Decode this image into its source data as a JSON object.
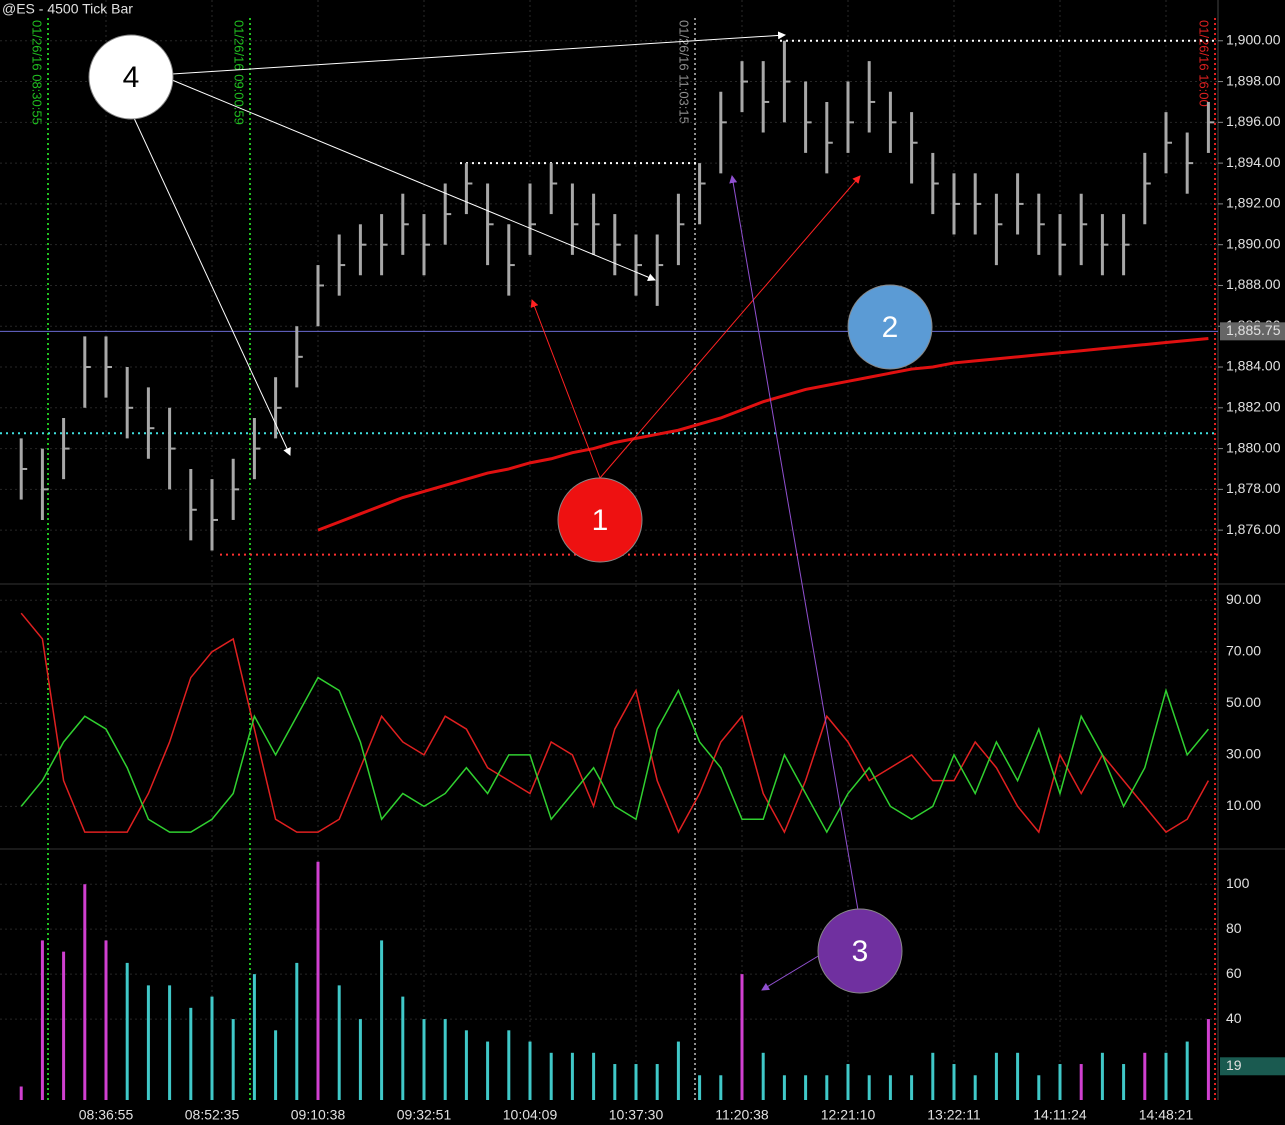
{
  "chart_data": [
    {
      "type": "ohlc",
      "title": "@ES - 4500 Tick Bar",
      "categories": [
        null,
        null,
        null,
        null,
        "08:36:55",
        null,
        null,
        null,
        null,
        "08:52:35",
        null,
        null,
        null,
        null,
        "09:10:38",
        null,
        null,
        null,
        null,
        "09:32:51",
        null,
        null,
        null,
        null,
        "10:04:09",
        null,
        null,
        null,
        null,
        "10:37:30",
        null,
        null,
        null,
        null,
        "11:20:38",
        null,
        null,
        null,
        null,
        "12:21:10",
        null,
        null,
        null,
        null,
        "13:22:11",
        null,
        null,
        null,
        null,
        "14:11:24",
        null,
        null,
        null,
        null,
        "14:48:21",
        null,
        null
      ],
      "high": [
        1880.5,
        1880,
        1881.5,
        1885.5,
        1885.5,
        1884,
        1883,
        1882,
        1879,
        1878.5,
        1879.5,
        1881.5,
        1883.5,
        1886,
        1889,
        1890.5,
        1891,
        1891.5,
        1892.5,
        1891.5,
        1893,
        1894,
        1893,
        1891,
        1893,
        1894,
        1893,
        1892.5,
        1891.5,
        1890.5,
        1890.5,
        1892.5,
        1894,
        1897.5,
        1899,
        1899,
        1900,
        1898,
        1897,
        1898,
        1899,
        1897.5,
        1896.5,
        1894.5,
        1893.5,
        1893.5,
        1892.5,
        1893.5,
        1892.5,
        1891.5,
        1892.5,
        1891.5,
        1891.5,
        1894.5,
        1896.5,
        1895.5,
        1897
      ],
      "low": [
        1877.5,
        1876.5,
        1878.5,
        1882,
        1882.5,
        1880.5,
        1879.5,
        1878,
        1875.5,
        1875,
        1876.5,
        1878.5,
        1880.5,
        1883,
        1886,
        1887.5,
        1888.5,
        1888.5,
        1889.5,
        1888.5,
        1890,
        1891.5,
        1889,
        1887.5,
        1889.5,
        1891.5,
        1889.5,
        1889.5,
        1888.5,
        1887.5,
        1887,
        1889,
        1891,
        1893.5,
        1896.5,
        1895.5,
        1896,
        1894.5,
        1893.5,
        1894.5,
        1895.5,
        1894.5,
        1893,
        1891.5,
        1890.5,
        1890.5,
        1889,
        1890.5,
        1889.5,
        1888.5,
        1889,
        1888.5,
        1888.5,
        1891,
        1893.5,
        1892.5,
        1894.5
      ],
      "close": [
        1879,
        1878,
        1880,
        1884,
        1884,
        1882,
        1881,
        1880,
        1877,
        1876.5,
        1878,
        1880,
        1882,
        1884.5,
        1888,
        1889,
        1890,
        1890,
        1891,
        1890,
        1891.5,
        1893,
        1891,
        1889,
        1891,
        1893,
        1891,
        1891,
        1890,
        1889,
        1889,
        1891,
        1893,
        1896,
        1898,
        1897,
        1898,
        1896,
        1895,
        1896,
        1897,
        1896,
        1895,
        1893,
        1892,
        1892,
        1891,
        1892,
        1891,
        1890,
        1891,
        1890,
        1890,
        1893,
        1895,
        1894,
        1896
      ],
      "color": "#a8a8a8",
      "lines": [
        {
          "color": "#e01010",
          "values": [
            null,
            null,
            null,
            null,
            null,
            null,
            null,
            null,
            null,
            null,
            null,
            null,
            null,
            null,
            1876.0,
            1876.4,
            1876.8,
            1877.2,
            1877.6,
            1877.9,
            1878.2,
            1878.5,
            1878.8,
            1879.0,
            1879.3,
            1879.5,
            1879.8,
            1880.0,
            1880.3,
            1880.5,
            1880.7,
            1880.9,
            1881.2,
            1881.5,
            1881.9,
            1882.3,
            1882.6,
            1882.9,
            1883.1,
            1883.3,
            1883.5,
            1883.7,
            1883.9,
            1884.0,
            1884.2,
            1884.3,
            1884.4,
            1884.5,
            1884.6,
            1884.7,
            1884.8,
            1884.9,
            1885.0,
            1885.1,
            1885.2,
            1885.3,
            1885.4
          ]
        }
      ],
      "levels": [
        {
          "value": 1900,
          "color": "#ffffff"
        },
        {
          "value": 1894,
          "color": "#ffffff"
        },
        {
          "value": 1885.75,
          "color": "#6a6ad0",
          "label": "1,885.75"
        },
        {
          "value": 1880.75,
          "color": "#40e0e0"
        },
        {
          "value": 1874.8,
          "color": "#ff3030"
        }
      ],
      "session_markers": [
        {
          "label": "01/26/16 08:30:55",
          "color": "#20c020"
        },
        {
          "label": "01/26/16 09:00:59",
          "color": "#20c020"
        },
        {
          "label": "01/26/16 11:03:15",
          "color": "#909090"
        },
        {
          "label": "01/26/16 16:00",
          "color": "#e02020"
        }
      ],
      "ylim": [
        1873.8,
        1902
      ],
      "yticks": [
        {
          "value": 1876,
          "label": "1,876.00"
        },
        {
          "value": 1878,
          "label": "1,878.00"
        },
        {
          "value": 1880,
          "label": "1,880.00"
        },
        {
          "value": 1882,
          "label": "1,882.00"
        },
        {
          "value": 1884,
          "label": "1,884.00"
        },
        {
          "value": 1886,
          "label": "1,886.00"
        },
        {
          "value": 1888,
          "label": "1,888.00"
        },
        {
          "value": 1890,
          "label": "1,890.00"
        },
        {
          "value": 1892,
          "label": "1,892.00"
        },
        {
          "value": 1894,
          "label": "1,894.00"
        },
        {
          "value": 1896,
          "label": "1,896.00"
        },
        {
          "value": 1898,
          "label": "1,898.00"
        },
        {
          "value": 1900,
          "label": "1,900.00"
        }
      ]
    },
    {
      "type": "line",
      "series": [
        {
          "color": "#e02020",
          "values": [
            85,
            75,
            20,
            0,
            0,
            0,
            15,
            35,
            60,
            70,
            75,
            40,
            5,
            0,
            0,
            5,
            25,
            45,
            35,
            30,
            45,
            40,
            25,
            20,
            15,
            35,
            30,
            10,
            40,
            55,
            20,
            0,
            15,
            35,
            45,
            15,
            0,
            20,
            45,
            35,
            20,
            25,
            30,
            20,
            20,
            35,
            25,
            10,
            0,
            30,
            15,
            30,
            20,
            10,
            0,
            5,
            20
          ]
        },
        {
          "color": "#30d030",
          "values": [
            10,
            20,
            35,
            45,
            40,
            25,
            5,
            0,
            0,
            5,
            15,
            45,
            30,
            45,
            60,
            55,
            35,
            5,
            15,
            10,
            15,
            25,
            15,
            30,
            30,
            5,
            15,
            25,
            10,
            5,
            40,
            55,
            35,
            25,
            5,
            5,
            30,
            15,
            0,
            15,
            25,
            10,
            5,
            10,
            30,
            15,
            35,
            20,
            40,
            15,
            45,
            30,
            10,
            25,
            55,
            30,
            40
          ]
        }
      ],
      "ylim": [
        -5,
        94
      ],
      "yticks": [
        {
          "value": 10,
          "label": "10.00"
        },
        {
          "value": 30,
          "label": "30.00"
        },
        {
          "value": 50,
          "label": "50.00"
        },
        {
          "value": 70,
          "label": "70.00"
        },
        {
          "value": 90,
          "label": "90.00"
        }
      ]
    },
    {
      "type": "bar",
      "values": [
        10,
        75,
        70,
        100,
        75,
        65,
        55,
        55,
        45,
        50,
        40,
        60,
        35,
        65,
        110,
        55,
        40,
        75,
        50,
        40,
        40,
        35,
        30,
        35,
        30,
        25,
        25,
        25,
        20,
        20,
        20,
        30,
        15,
        15,
        60,
        25,
        15,
        15,
        15,
        20,
        15,
        15,
        15,
        25,
        20,
        15,
        25,
        25,
        15,
        20,
        20,
        25,
        20,
        25,
        25,
        30,
        40
      ],
      "colors": [
        "#d040d0",
        "#d040d0",
        "#d040d0",
        "#d040d0",
        "#d040d0",
        "#40c8c8",
        "#40c8c8",
        "#40c8c8",
        "#40c8c8",
        "#40c8c8",
        "#40c8c8",
        "#40c8c8",
        "#40c8c8",
        "#40c8c8",
        "#d040d0",
        "#40c8c8",
        "#40c8c8",
        "#40c8c8",
        "#40c8c8",
        "#40c8c8",
        "#40c8c8",
        "#40c8c8",
        "#40c8c8",
        "#40c8c8",
        "#40c8c8",
        "#40c8c8",
        "#40c8c8",
        "#40c8c8",
        "#40c8c8",
        "#40c8c8",
        "#40c8c8",
        "#40c8c8",
        "#40c8c8",
        "#40c8c8",
        "#d040d0",
        "#40c8c8",
        "#40c8c8",
        "#40c8c8",
        "#40c8c8",
        "#40c8c8",
        "#40c8c8",
        "#40c8c8",
        "#40c8c8",
        "#40c8c8",
        "#40c8c8",
        "#40c8c8",
        "#40c8c8",
        "#40c8c8",
        "#40c8c8",
        "#40c8c8",
        "#d040d0",
        "#40c8c8",
        "#40c8c8",
        "#d040d0",
        "#40c8c8",
        "#40c8c8",
        "#d040d0"
      ],
      "last_value": 19,
      "ylim": [
        4,
        113
      ],
      "yticks": [
        40,
        60,
        80,
        100
      ]
    }
  ],
  "annotations": [
    {
      "label": "1",
      "color": "#ee1111"
    },
    {
      "label": "2",
      "color": "#5b9bd5"
    },
    {
      "label": "3",
      "color": "#7030a0"
    },
    {
      "label": "4",
      "color": "#ffffff"
    }
  ]
}
